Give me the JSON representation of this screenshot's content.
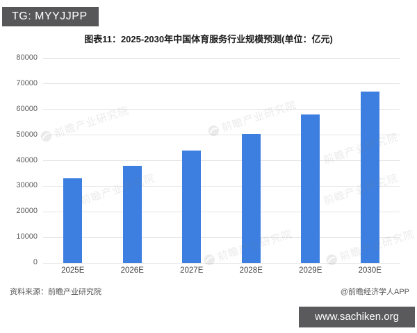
{
  "badge": {
    "label": "TG: MYYJJPP"
  },
  "chart": {
    "title": "图表11：2025-2030年中国体育服务行业规模预测(单位：亿元)",
    "watermark_text": "前瞻产业研究院"
  },
  "footer": {
    "source": "资料来源：前瞻产业研究院",
    "credit": "@前瞻经济学人APP"
  },
  "site_watermark": {
    "label": "www.sachiken.org"
  },
  "colors": {
    "bar": "#3C7FE1",
    "gridline": "#E4E4E4",
    "badge_bg": "#57575A",
    "site_box_bg": "#5A5A5D",
    "title_text": "#1C1C1C",
    "axis_text": "#595959"
  },
  "chart_data": {
    "type": "bar",
    "categories": [
      "2025E",
      "2026E",
      "2027E",
      "2028E",
      "2029E",
      "2030E"
    ],
    "values": [
      33000,
      38000,
      44000,
      50500,
      58000,
      67000
    ],
    "title": "图表11：2025-2030年中国体育服务行业规模预测(单位：亿元)",
    "xlabel": "",
    "ylabel": "",
    "unit": "亿元",
    "ylim": [
      0,
      80000
    ],
    "yticks": [
      0,
      10000,
      20000,
      30000,
      40000,
      50000,
      60000,
      70000,
      80000
    ],
    "grid": true,
    "legend": false
  }
}
